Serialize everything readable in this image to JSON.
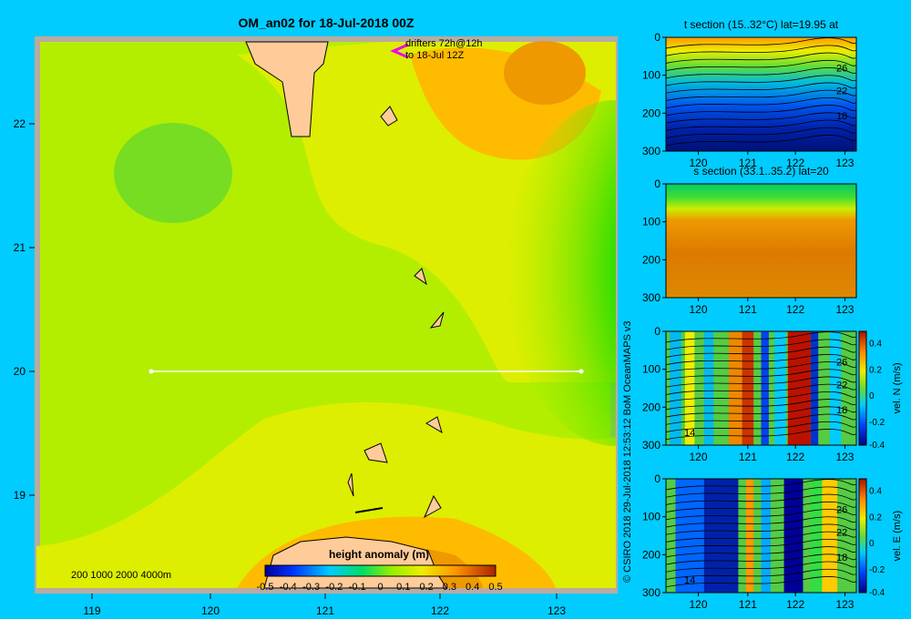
{
  "main_map": {
    "title": "OM_an02 for 18-Jul-2018 00Z",
    "drifters_line1": "drifters 72h@12h",
    "drifters_line2": "to 18-Jul 12Z",
    "x_ticks": [
      "119",
      "120",
      "121",
      "122",
      "123"
    ],
    "y_ticks": [
      "22",
      "21",
      "20",
      "19"
    ],
    "depth_legend": "200  1000  2000  4000m",
    "colorbar_title": "height anomaly (m)",
    "colorbar_ticks": [
      "-0.5",
      "-0.4",
      "-0.3",
      "-0.2",
      "-0.1",
      "0",
      "0.1",
      "0.2",
      "0.3",
      "0.4",
      "0.5"
    ],
    "section_line_lat": "20"
  },
  "credit": "© CSIRO 2018   29-Jul-2018 12:53:12 BoM OceanMAPS v3",
  "chart_data": [
    {
      "type": "heatmap",
      "title": "OM_an02 for 18-Jul-2018 00Z",
      "field": "height anomaly (m)",
      "xlim": [
        118.5,
        123.5
      ],
      "ylim": [
        18.25,
        22.7
      ],
      "clim": [
        -0.5,
        0.5
      ],
      "section_line": {
        "lat": 20,
        "lon": [
          119.5,
          123.2
        ]
      }
    },
    {
      "type": "heatmap",
      "title": "t section (15..32°C) lat=19.95 at",
      "x_ticks": [
        "120",
        "121",
        "122",
        "123"
      ],
      "y_ticks": [
        "0",
        "100",
        "200",
        "300"
      ],
      "contour_labels": [
        "26",
        "22",
        "18"
      ],
      "ylim": [
        300,
        0
      ]
    },
    {
      "type": "heatmap",
      "title": "s section (33.1..35.2) lat=20",
      "x_ticks": [
        "120",
        "121",
        "122",
        "123"
      ],
      "y_ticks": [
        "0",
        "100",
        "200",
        "300"
      ],
      "ylim": [
        300,
        0
      ]
    },
    {
      "type": "heatmap",
      "title": "",
      "colorbar_label": "vel. N (m/s)",
      "colorbar_ticks": [
        "0.4",
        "0.2",
        "0",
        "-0.2",
        "-0.4"
      ],
      "x_ticks": [
        "120",
        "121",
        "122",
        "123"
      ],
      "y_ticks": [
        "0",
        "100",
        "200",
        "300"
      ],
      "contour_labels": [
        "26",
        "22",
        "18",
        "14"
      ],
      "ylim": [
        300,
        0
      ],
      "clim": [
        -0.4,
        0.4
      ]
    },
    {
      "type": "heatmap",
      "title": "",
      "colorbar_label": "vel. E (m/s)",
      "colorbar_ticks": [
        "0.4",
        "0.2",
        "0",
        "-0.2",
        "-0.4"
      ],
      "x_ticks": [
        "120",
        "121",
        "122",
        "123"
      ],
      "y_ticks": [
        "0",
        "100",
        "200",
        "300"
      ],
      "contour_labels": [
        "26",
        "22",
        "18",
        "14"
      ],
      "ylim": [
        300,
        0
      ],
      "clim": [
        -0.4,
        0.4
      ]
    }
  ],
  "panels": [
    {
      "title": "t section (15..32°C) lat=19.95 at",
      "x_ticks": [
        "120",
        "121",
        "122",
        "123"
      ],
      "y_ticks": [
        "0",
        "100",
        "200",
        "300"
      ],
      "contours": [
        "26",
        "22",
        "18"
      ],
      "cbar": null
    },
    {
      "title": "s section (33.1..35.2) lat=20",
      "x_ticks": [
        "120",
        "121",
        "122",
        "123"
      ],
      "y_ticks": [
        "0",
        "100",
        "200",
        "300"
      ],
      "contours": [],
      "cbar": null
    },
    {
      "title": "",
      "x_ticks": [
        "120",
        "121",
        "122",
        "123"
      ],
      "y_ticks": [
        "0",
        "100",
        "200",
        "300"
      ],
      "contours": [
        "26",
        "22",
        "18",
        "14"
      ],
      "cbar": {
        "label": "vel. N (m/s)",
        "ticks": [
          "0.4",
          "0.2",
          "0",
          "-0.2",
          "-0.4"
        ]
      }
    },
    {
      "title": "",
      "x_ticks": [
        "120",
        "121",
        "122",
        "123"
      ],
      "y_ticks": [
        "0",
        "100",
        "200",
        "300"
      ],
      "contours": [
        "26",
        "22",
        "18",
        "14"
      ],
      "cbar": {
        "label": "vel. E (m/s)",
        "ticks": [
          "0.4",
          "0.2",
          "0",
          "-0.2",
          "-0.4"
        ]
      }
    }
  ]
}
